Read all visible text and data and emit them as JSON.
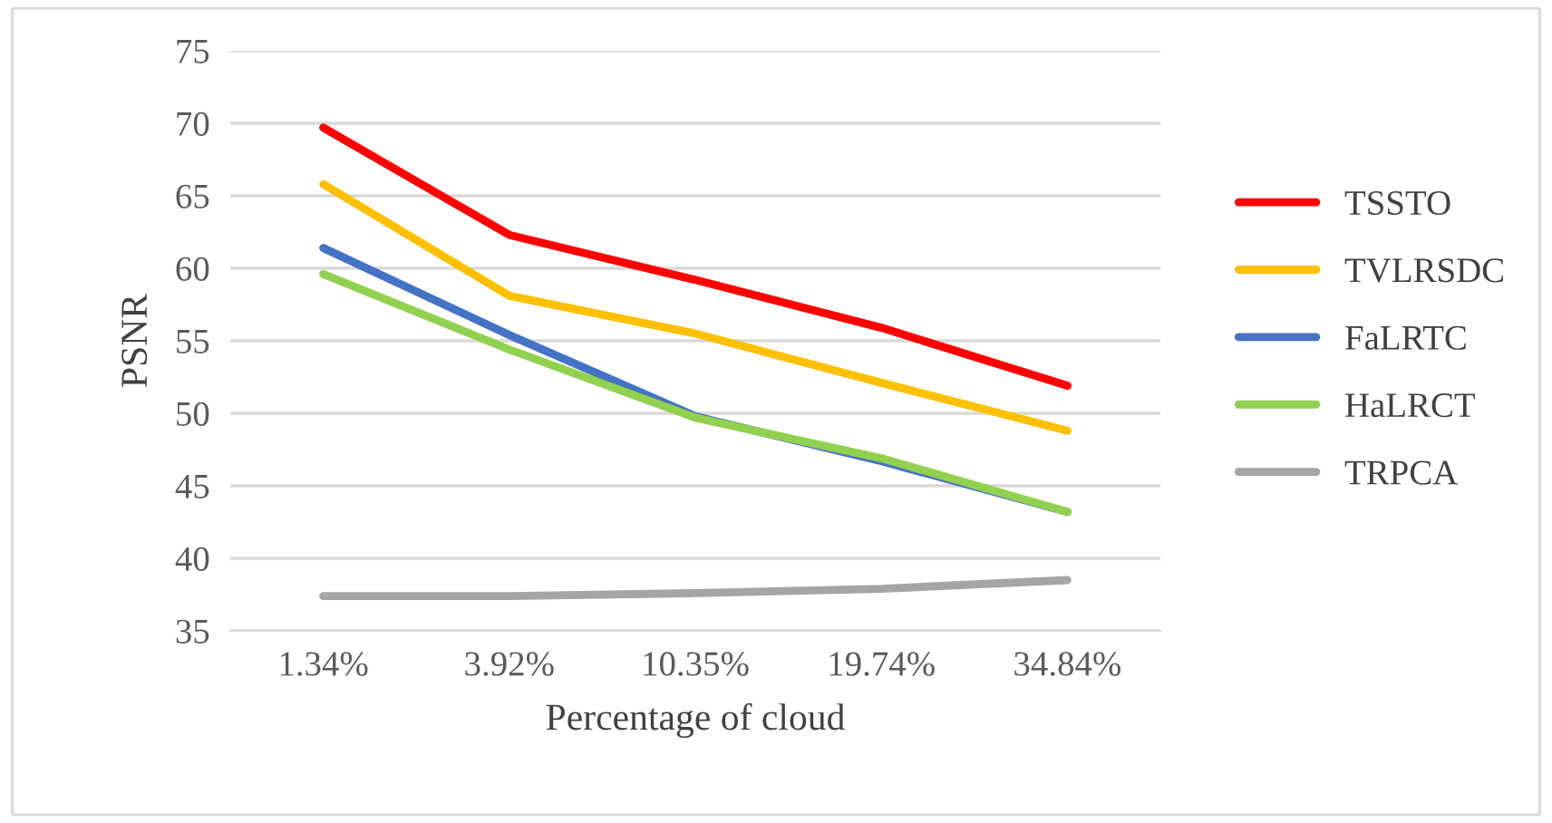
{
  "chart_data": {
    "type": "line",
    "xlabel": "Percentage of cloud",
    "ylabel": "PSNR",
    "categories": [
      "1.34%",
      "3.92%",
      "10.35%",
      "19.74%",
      "34.84%"
    ],
    "series": [
      {
        "name": "TSSTO",
        "color": "#ff0000",
        "values": [
          69.7,
          62.3,
          59.2,
          55.9,
          51.9
        ]
      },
      {
        "name": "TVLRSDC",
        "color": "#ffc000",
        "values": [
          65.8,
          58.1,
          55.5,
          52.1,
          48.8
        ]
      },
      {
        "name": "FaLRTC",
        "color": "#4472c4",
        "values": [
          61.4,
          55.4,
          49.8,
          46.7,
          43.2
        ]
      },
      {
        "name": "HaLRCT",
        "color": "#92d050",
        "values": [
          59.6,
          54.4,
          49.7,
          46.9,
          43.2
        ]
      },
      {
        "name": "TRPCA",
        "color": "#a5a5a5",
        "values": [
          37.4,
          37.4,
          37.6,
          37.9,
          38.5
        ]
      }
    ],
    "ylim": [
      35,
      75
    ],
    "yticks": [
      35,
      40,
      45,
      50,
      55,
      60,
      65,
      70,
      75
    ],
    "grid": "y",
    "legend": "right",
    "marker": "none",
    "line_style": "solid"
  }
}
